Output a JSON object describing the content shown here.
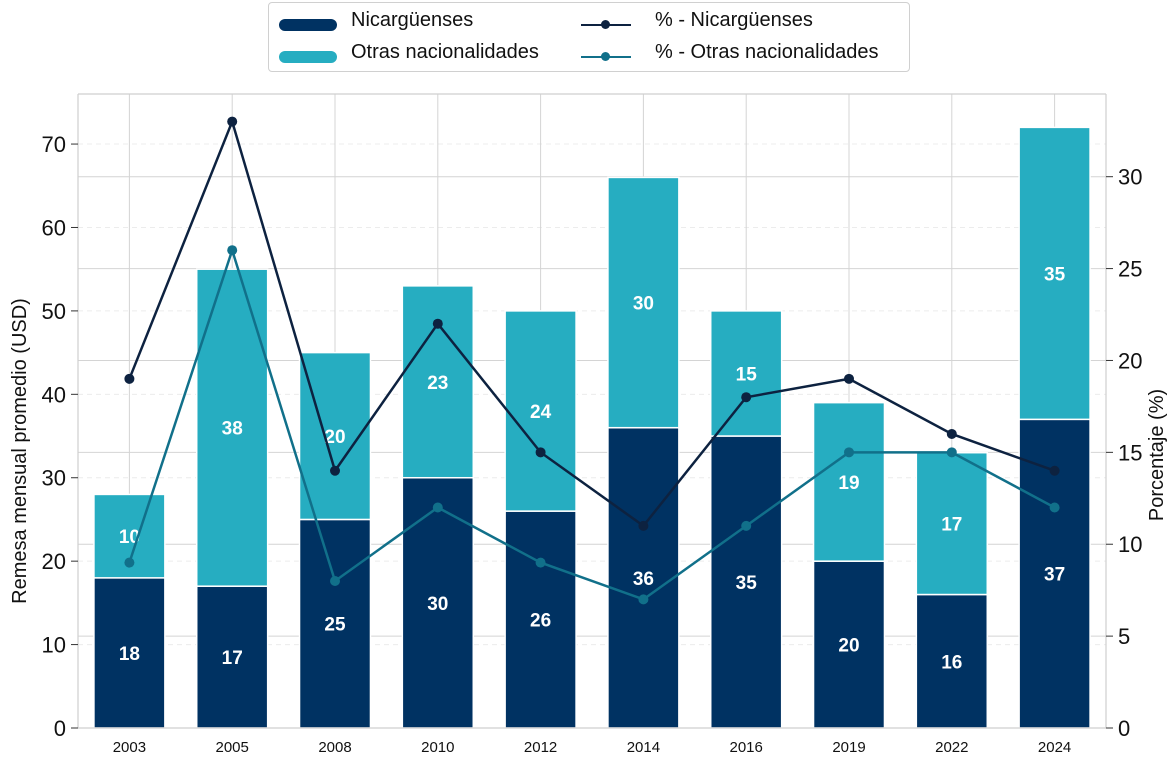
{
  "chart_data": {
    "type": "bar",
    "stacked": true,
    "categories": [
      "2003",
      "2005",
      "2008",
      "2010",
      "2012",
      "2014",
      "2016",
      "2019",
      "2022",
      "2024"
    ],
    "series": [
      {
        "name": "Nicargüenses",
        "type": "bar",
        "axis": "left",
        "color": "#003262",
        "values": [
          18,
          17,
          25,
          30,
          26,
          36,
          35,
          20,
          16,
          37
        ]
      },
      {
        "name": "Otras nacionalidades",
        "type": "bar",
        "axis": "left",
        "color": "#26adc1",
        "values": [
          10,
          38,
          20,
          23,
          24,
          30,
          15,
          19,
          17,
          35
        ]
      },
      {
        "name": "% - Nicargüenses",
        "type": "line",
        "axis": "right",
        "color": "#0d2240",
        "values": [
          19,
          33,
          14,
          22,
          15,
          11,
          18,
          19,
          16,
          14
        ]
      },
      {
        "name": "% - Otras nacionalidades",
        "type": "line",
        "axis": "right",
        "color": "#11708a",
        "values": [
          9,
          26,
          8,
          12,
          9,
          7,
          11,
          15,
          15,
          12
        ]
      }
    ],
    "ylabel": "Remesa mensual promedio (USD)",
    "y2label": "Porcentaje (%)",
    "ylim": [
      0,
      76
    ],
    "y2lim": [
      0,
      34.5
    ],
    "yticks": [
      0,
      10,
      20,
      30,
      40,
      50,
      60,
      70
    ],
    "y2ticks": [
      0,
      5,
      10,
      15,
      20,
      25,
      30
    ],
    "grid": true,
    "legend_position": "top-center"
  },
  "legend": {
    "items": [
      {
        "label": "Nicargüenses"
      },
      {
        "label": "Otras nacionalidades"
      },
      {
        "label": "% - Nicargüenses"
      },
      {
        "label": "% - Otras nacionalidades"
      }
    ]
  }
}
